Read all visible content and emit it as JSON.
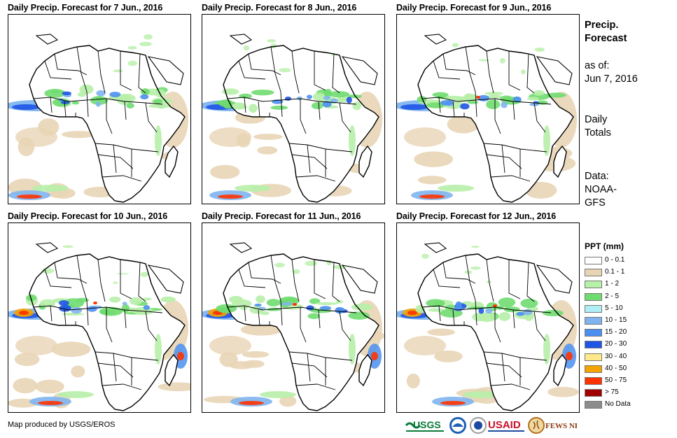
{
  "panels": [
    {
      "title": "Daily Precip. Forecast for 7 Jun., 2016",
      "variant": 0
    },
    {
      "title": "Daily Precip. Forecast for 8 Jun., 2016",
      "variant": 1
    },
    {
      "title": "Daily Precip. Forecast for 9 Jun., 2016",
      "variant": 2
    },
    {
      "title": "Daily Precip. Forecast for 10 Jun., 2016",
      "variant": 3
    },
    {
      "title": "Daily Precip. Forecast for 11 Jun., 2016",
      "variant": 4
    },
    {
      "title": "Daily Precip. Forecast for 12 Jun., 2016",
      "variant": 5
    }
  ],
  "sidebar": {
    "heading_line1": "Precip.",
    "heading_line2": "Forecast",
    "asof_label": "as of:",
    "asof_date": "Jun 7, 2016",
    "totals_line1": "Daily",
    "totals_line2": "Totals",
    "data_label": "Data:",
    "data_line1": "NOAA-",
    "data_line2": "GFS"
  },
  "legend": {
    "title": "PPT (mm)",
    "items": [
      {
        "label": "0 - 0.1",
        "color": "#ffffff"
      },
      {
        "label": "0.1 - 1",
        "color": "#e8d5b5"
      },
      {
        "label": "1 - 2",
        "color": "#b7f0a8"
      },
      {
        "label": "2 - 5",
        "color": "#6fdc6f"
      },
      {
        "label": "5 - 10",
        "color": "#aeeef5"
      },
      {
        "label": "10 - 15",
        "color": "#7fb4f0"
      },
      {
        "label": "15 - 20",
        "color": "#4b8ff0"
      },
      {
        "label": "20 - 30",
        "color": "#1f55e6"
      },
      {
        "label": "30 - 40",
        "color": "#ffe98a"
      },
      {
        "label": "40 - 50",
        "color": "#f5a300"
      },
      {
        "label": "50 - 75",
        "color": "#ff3300"
      },
      {
        "label": "> 75",
        "color": "#a00000"
      },
      {
        "label": "No Data",
        "color": "#8c8c8c"
      }
    ]
  },
  "footer": {
    "credit": "Map produced by USGS/EROS",
    "logos": [
      "usgs-logo",
      "noaa-logo",
      "usaid-logo",
      "fews-net-logo"
    ],
    "usgs_text": "USGS",
    "usaid_text": "USAID",
    "fews_text": "FEWS NET"
  }
}
